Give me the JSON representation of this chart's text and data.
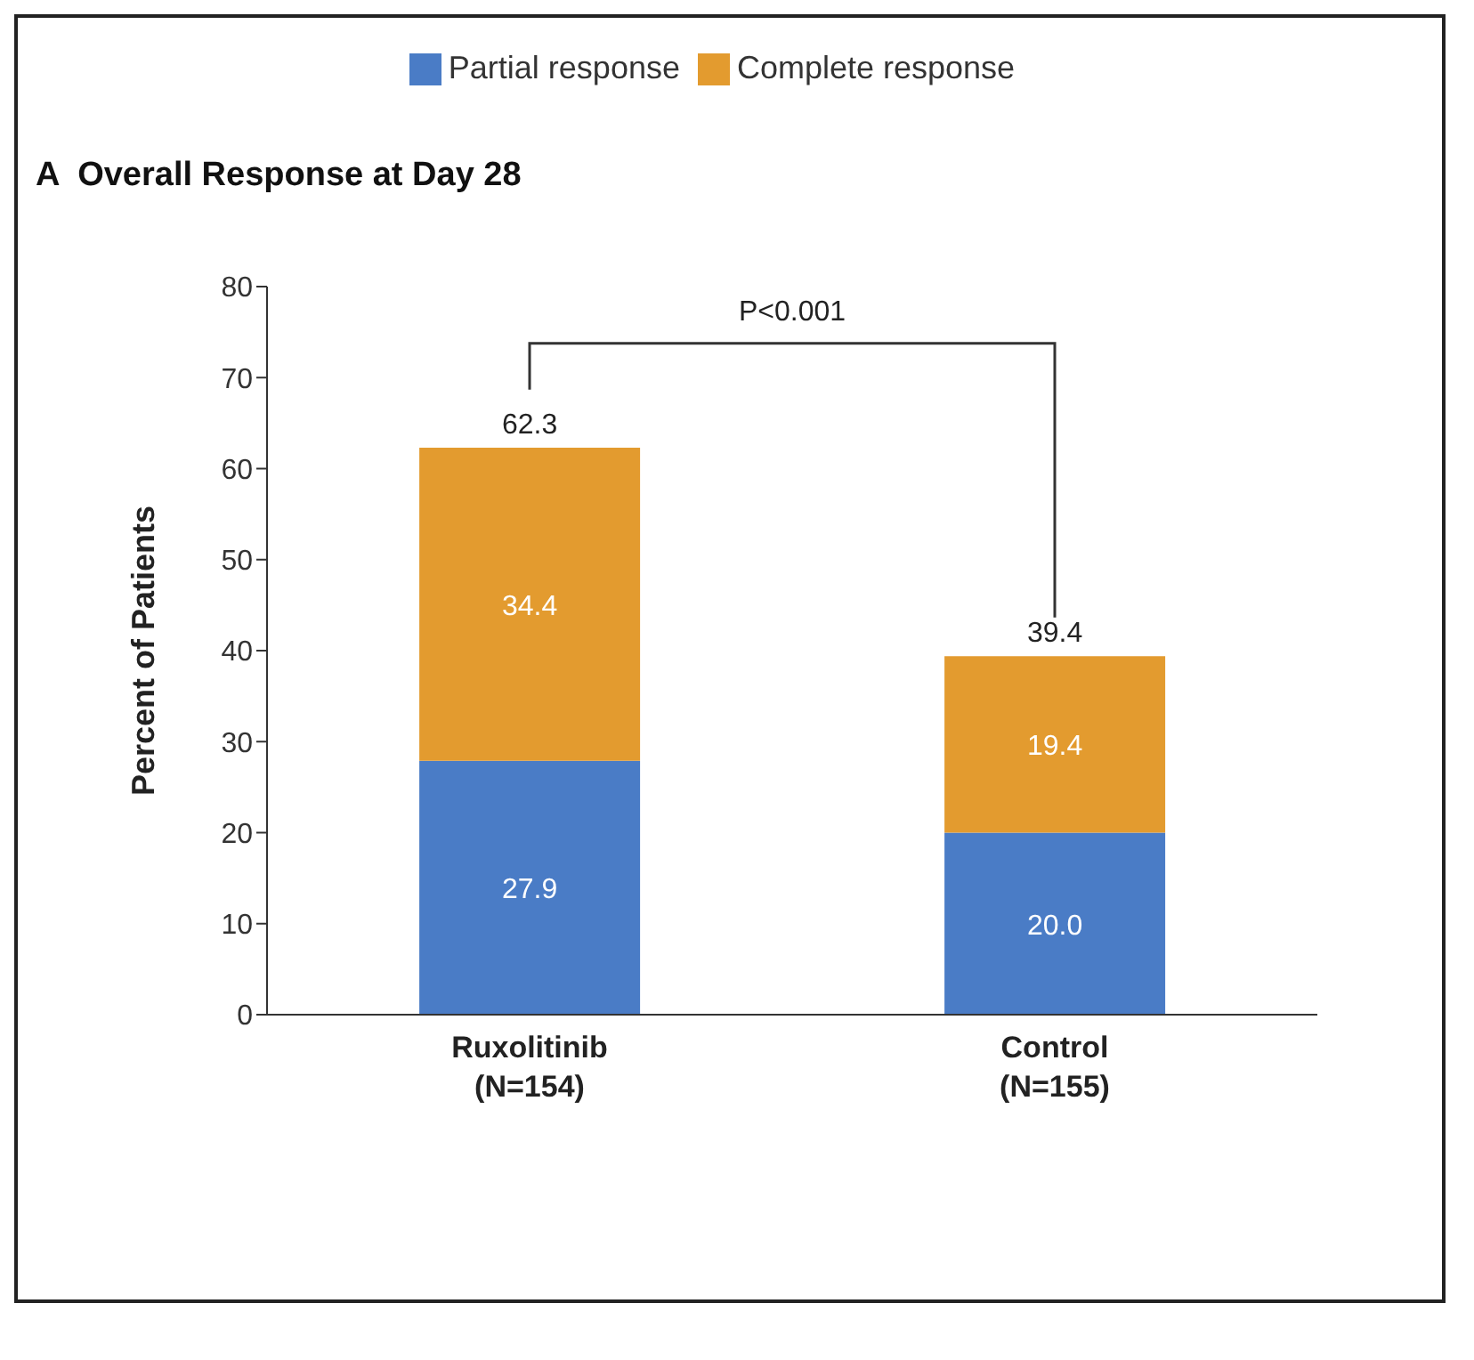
{
  "chart_data": {
    "type": "bar",
    "title": "A  Overall Response at Day 28",
    "ylabel": "Percent of Patients",
    "categories": [
      "Ruxolitinib\n(N=154)",
      "Control\n(N=155)"
    ],
    "stacked": true,
    "series": [
      {
        "name": "Partial response",
        "color": "#4a7cc6",
        "values": [
          27.9,
          20.0
        ],
        "value_labels": [
          "27.9",
          "20.0"
        ]
      },
      {
        "name": "Complete response",
        "color": "#e39b2f",
        "values": [
          34.4,
          19.4
        ],
        "value_labels": [
          "34.4",
          "19.4"
        ]
      }
    ],
    "totals": [
      "62.3",
      "39.4"
    ],
    "ylim": [
      0,
      80
    ],
    "yticks": [
      0,
      10,
      20,
      30,
      40,
      50,
      60,
      70,
      80
    ],
    "grid": false,
    "legend": "top",
    "annotations": [
      "P<0.001"
    ]
  }
}
